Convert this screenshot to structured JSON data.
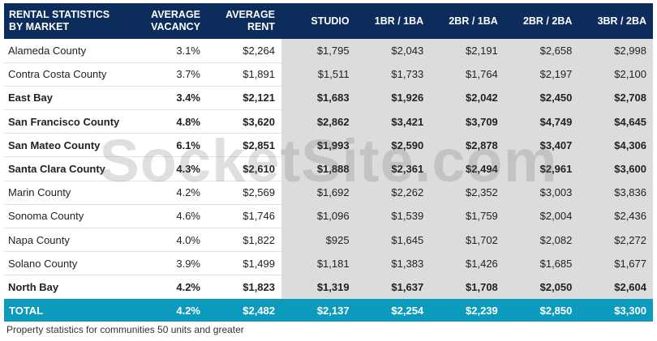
{
  "table": {
    "headers": [
      [
        "RENTAL STATISTICS",
        "BY MARKET"
      ],
      [
        "AVERAGE",
        "VACANCY"
      ],
      [
        "AVERAGE",
        "RENT"
      ],
      [
        "",
        "STUDIO"
      ],
      [
        "",
        "1BR / 1BA"
      ],
      [
        "",
        "2BR / 1BA"
      ],
      [
        "",
        "2BR / 2BA"
      ],
      [
        "",
        "3BR / 2BA"
      ]
    ],
    "rows": [
      {
        "bold": false,
        "cells": [
          "Alameda County",
          "3.1%",
          "$2,264",
          "$1,795",
          "$2,043",
          "$2,191",
          "$2,658",
          "$2,998"
        ]
      },
      {
        "bold": false,
        "cells": [
          "Contra Costa County",
          "3.7%",
          "$1,891",
          "$1,511",
          "$1,733",
          "$1,764",
          "$2,197",
          "$2,100"
        ]
      },
      {
        "bold": true,
        "cells": [
          "East Bay",
          "3.4%",
          "$2,121",
          "$1,683",
          "$1,926",
          "$2,042",
          "$2,450",
          "$2,708"
        ]
      },
      {
        "bold": true,
        "cells": [
          "San Francisco County",
          "4.8%",
          "$3,620",
          "$2,862",
          "$3,421",
          "$3,709",
          "$4,749",
          "$4,645"
        ]
      },
      {
        "bold": true,
        "cells": [
          "San Mateo County",
          "6.1%",
          "$2,851",
          "$1,993",
          "$2,590",
          "$2,878",
          "$3,407",
          "$4,306"
        ]
      },
      {
        "bold": true,
        "cells": [
          "Santa Clara County",
          "4.3%",
          "$2,610",
          "$1,888",
          "$2,361",
          "$2,494",
          "$2,961",
          "$3,600"
        ]
      },
      {
        "bold": false,
        "cells": [
          "Marin County",
          "4.2%",
          "$2,569",
          "$1,692",
          "$2,262",
          "$2,352",
          "$3,003",
          "$3,836"
        ]
      },
      {
        "bold": false,
        "cells": [
          "Sonoma County",
          "4.6%",
          "$1,746",
          "$1,096",
          "$1,539",
          "$1,759",
          "$2,004",
          "$2,436"
        ]
      },
      {
        "bold": false,
        "cells": [
          "Napa County",
          "4.0%",
          "$1,822",
          "$925",
          "$1,645",
          "$1,702",
          "$2,082",
          "$2,272"
        ]
      },
      {
        "bold": false,
        "cells": [
          "Solano County",
          "3.9%",
          "$1,499",
          "$1,181",
          "$1,383",
          "$1,426",
          "$1,685",
          "$1,677"
        ]
      },
      {
        "bold": true,
        "cells": [
          "North Bay",
          "4.2%",
          "$1,823",
          "$1,319",
          "$1,637",
          "$1,708",
          "$2,050",
          "$2,604"
        ]
      }
    ],
    "total": [
      "TOTAL",
      "4.2%",
      "$2,482",
      "$2,137",
      "$2,254",
      "$2,239",
      "$2,850",
      "$3,300"
    ]
  },
  "footnote": "Property statistics for communities 50 units and greater",
  "watermark": "SocketSite.com",
  "colors": {
    "header_bg": "#0c2d5c",
    "total_bg": "#0d9bbd",
    "unit_columns_bg": "#dcdcdc"
  }
}
